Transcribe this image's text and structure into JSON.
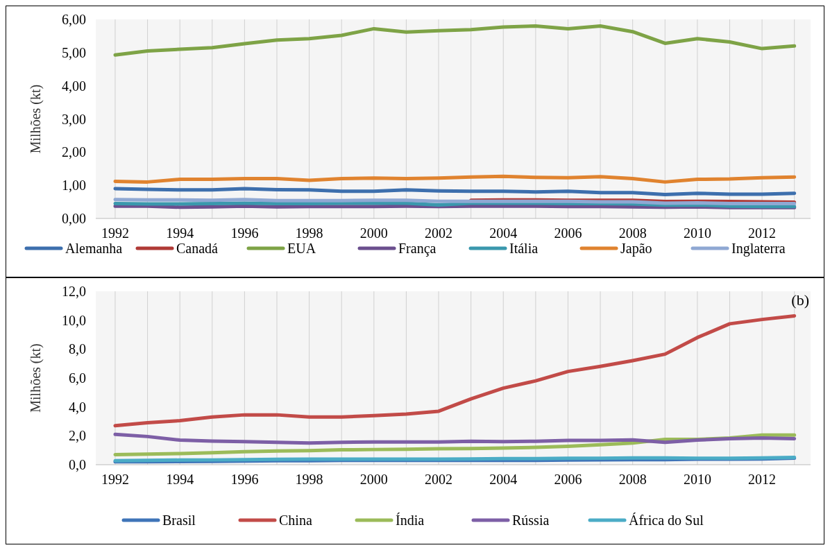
{
  "chart_data": [
    {
      "type": "line",
      "ylabel": "Milhões (kt)",
      "x": [
        1992,
        1993,
        1994,
        1995,
        1996,
        1997,
        1998,
        1999,
        2000,
        2001,
        2002,
        2003,
        2004,
        2005,
        2006,
        2007,
        2008,
        2009,
        2010,
        2011,
        2012,
        2013
      ],
      "xlim": [
        1991.4,
        2013.5
      ],
      "xticks": [
        1992,
        {
          "value": 1993,
          "label": null
        },
        1994,
        {
          "value": 1995,
          "label": null
        },
        1996,
        {
          "value": 1997,
          "label": null
        },
        1998,
        {
          "value": 1999,
          "label": null
        },
        2000,
        {
          "value": 2001,
          "label": null
        },
        2002,
        {
          "value": 2003,
          "label": null
        },
        2004,
        {
          "value": 2005,
          "label": null
        },
        2006,
        {
          "value": 2007,
          "label": null
        },
        2008,
        {
          "value": 2009,
          "label": null
        },
        2010,
        {
          "value": 2011,
          "label": null
        },
        2012,
        {
          "value": 2013,
          "label": null
        }
      ],
      "ylim": [
        0,
        6
      ],
      "yticks": [
        {
          "value": 0,
          "label": "0,00"
        },
        {
          "value": 1,
          "label": "1,00"
        },
        {
          "value": 2,
          "label": "2,00"
        },
        {
          "value": 3,
          "label": "3,00"
        },
        {
          "value": 4,
          "label": "4,00"
        },
        {
          "value": 5,
          "label": "5,00"
        },
        {
          "value": 6,
          "label": "6,00"
        }
      ],
      "grid": "x",
      "legend": "bottom",
      "line_style": "solid",
      "series": [
        {
          "name": "Alemanha",
          "color": "#3d6fad",
          "values": [
            0.9,
            0.88,
            0.86,
            0.86,
            0.9,
            0.87,
            0.86,
            0.82,
            0.82,
            0.86,
            0.83,
            0.82,
            0.82,
            0.8,
            0.82,
            0.78,
            0.78,
            0.72,
            0.76,
            0.73,
            0.73,
            0.76
          ]
        },
        {
          "name": "Canadá",
          "color": "#b03a36",
          "values": [
            null,
            null,
            null,
            null,
            null,
            null,
            null,
            null,
            null,
            null,
            null,
            0.55,
            0.56,
            0.56,
            0.55,
            0.55,
            0.55,
            0.51,
            0.52,
            0.51,
            0.5,
            0.49
          ]
        },
        {
          "name": "EUA",
          "color": "#7ea346",
          "values": [
            4.93,
            5.05,
            5.1,
            5.15,
            5.27,
            5.38,
            5.42,
            5.52,
            5.72,
            5.62,
            5.66,
            5.69,
            5.77,
            5.8,
            5.72,
            5.8,
            5.63,
            5.28,
            5.42,
            5.32,
            5.12,
            5.2
          ]
        },
        {
          "name": "França",
          "color": "#6b4f8e",
          "values": [
            0.37,
            0.37,
            0.34,
            0.35,
            0.37,
            0.35,
            0.36,
            0.36,
            0.36,
            0.37,
            0.36,
            0.37,
            0.37,
            0.37,
            0.36,
            0.36,
            0.35,
            0.34,
            0.35,
            0.33,
            0.33,
            0.33
          ]
        },
        {
          "name": "Itália",
          "color": "#3a98ad",
          "values": [
            0.45,
            0.44,
            0.44,
            0.45,
            0.46,
            0.45,
            0.45,
            0.46,
            0.46,
            0.46,
            0.41,
            0.46,
            0.46,
            0.46,
            0.45,
            0.45,
            0.44,
            0.4,
            0.41,
            0.37,
            0.36,
            0.36
          ]
        },
        {
          "name": "Japão",
          "color": "#e0832f",
          "values": [
            1.12,
            1.1,
            1.18,
            1.18,
            1.2,
            1.2,
            1.15,
            1.2,
            1.22,
            1.2,
            1.22,
            1.25,
            1.27,
            1.24,
            1.23,
            1.26,
            1.2,
            1.1,
            1.18,
            1.19,
            1.23,
            1.25
          ]
        },
        {
          "name": "Inglaterra",
          "color": "#8fa8d3",
          "values": [
            0.57,
            0.56,
            0.56,
            0.55,
            0.57,
            0.54,
            0.54,
            0.54,
            0.55,
            0.55,
            0.52,
            0.52,
            0.52,
            0.52,
            0.52,
            0.5,
            0.5,
            0.46,
            0.47,
            0.45,
            0.45,
            0.45
          ]
        }
      ]
    },
    {
      "type": "line",
      "ylabel": "Milhões (kt)",
      "annotations": [
        "(b)"
      ],
      "x": [
        1992,
        1993,
        1994,
        1995,
        1996,
        1997,
        1998,
        1999,
        2000,
        2001,
        2002,
        2003,
        2004,
        2005,
        2006,
        2007,
        2008,
        2009,
        2010,
        2011,
        2012,
        2013
      ],
      "xlim": [
        1991.4,
        2013.5
      ],
      "xticks": [
        1992,
        {
          "value": 1993,
          "label": null
        },
        1994,
        {
          "value": 1995,
          "label": null
        },
        1996,
        {
          "value": 1997,
          "label": null
        },
        1998,
        {
          "value": 1999,
          "label": null
        },
        2000,
        {
          "value": 2001,
          "label": null
        },
        2002,
        {
          "value": 2003,
          "label": null
        },
        2004,
        {
          "value": 2005,
          "label": null
        },
        2006,
        {
          "value": 2007,
          "label": null
        },
        2008,
        {
          "value": 2009,
          "label": null
        },
        2010,
        {
          "value": 2011,
          "label": null
        },
        2012,
        {
          "value": 2013,
          "label": null
        }
      ],
      "ylim": [
        0,
        12
      ],
      "yticks": [
        {
          "value": 0,
          "label": "0,0"
        },
        {
          "value": 2,
          "label": "2,0"
        },
        {
          "value": 4,
          "label": "4,0"
        },
        {
          "value": 6,
          "label": "6,0"
        },
        {
          "value": 8,
          "label": "8,0"
        },
        {
          "value": 10,
          "label": "10,0"
        },
        {
          "value": 12,
          "label": "12,0"
        }
      ],
      "grid": "x",
      "legend": "bottom",
      "line_style": "solid",
      "series": [
        {
          "name": "Brasil",
          "color": "#3f74b8",
          "values": [
            0.2,
            0.2,
            0.22,
            0.23,
            0.25,
            0.28,
            0.28,
            0.3,
            0.3,
            0.3,
            0.3,
            0.3,
            0.3,
            0.3,
            0.32,
            0.33,
            0.35,
            0.35,
            0.38,
            0.38,
            0.4,
            0.45
          ]
        },
        {
          "name": "China",
          "color": "#c24b48",
          "values": [
            2.7,
            2.9,
            3.05,
            3.3,
            3.45,
            3.45,
            3.3,
            3.3,
            3.4,
            3.5,
            3.7,
            4.55,
            5.3,
            5.8,
            6.45,
            6.8,
            7.2,
            7.65,
            8.8,
            9.75,
            10.05,
            10.3
          ]
        },
        {
          "name": "Índia",
          "color": "#9bbb59",
          "values": [
            0.7,
            0.73,
            0.77,
            0.83,
            0.9,
            0.95,
            0.97,
            1.03,
            1.05,
            1.07,
            1.1,
            1.12,
            1.15,
            1.2,
            1.27,
            1.38,
            1.5,
            1.75,
            1.75,
            1.85,
            2.05,
            2.05
          ]
        },
        {
          "name": "Rússia",
          "color": "#7d5fa6",
          "values": [
            2.1,
            1.95,
            1.7,
            1.63,
            1.6,
            1.55,
            1.5,
            1.55,
            1.57,
            1.57,
            1.57,
            1.62,
            1.6,
            1.62,
            1.68,
            1.68,
            1.72,
            1.55,
            1.7,
            1.8,
            1.85,
            1.8
          ]
        },
        {
          "name": "África do Sul",
          "color": "#4bacc6",
          "values": [
            0.28,
            0.3,
            0.32,
            0.33,
            0.35,
            0.37,
            0.38,
            0.38,
            0.38,
            0.38,
            0.38,
            0.4,
            0.42,
            0.42,
            0.44,
            0.45,
            0.47,
            0.47,
            0.45,
            0.45,
            0.47,
            0.5
          ]
        }
      ]
    }
  ]
}
